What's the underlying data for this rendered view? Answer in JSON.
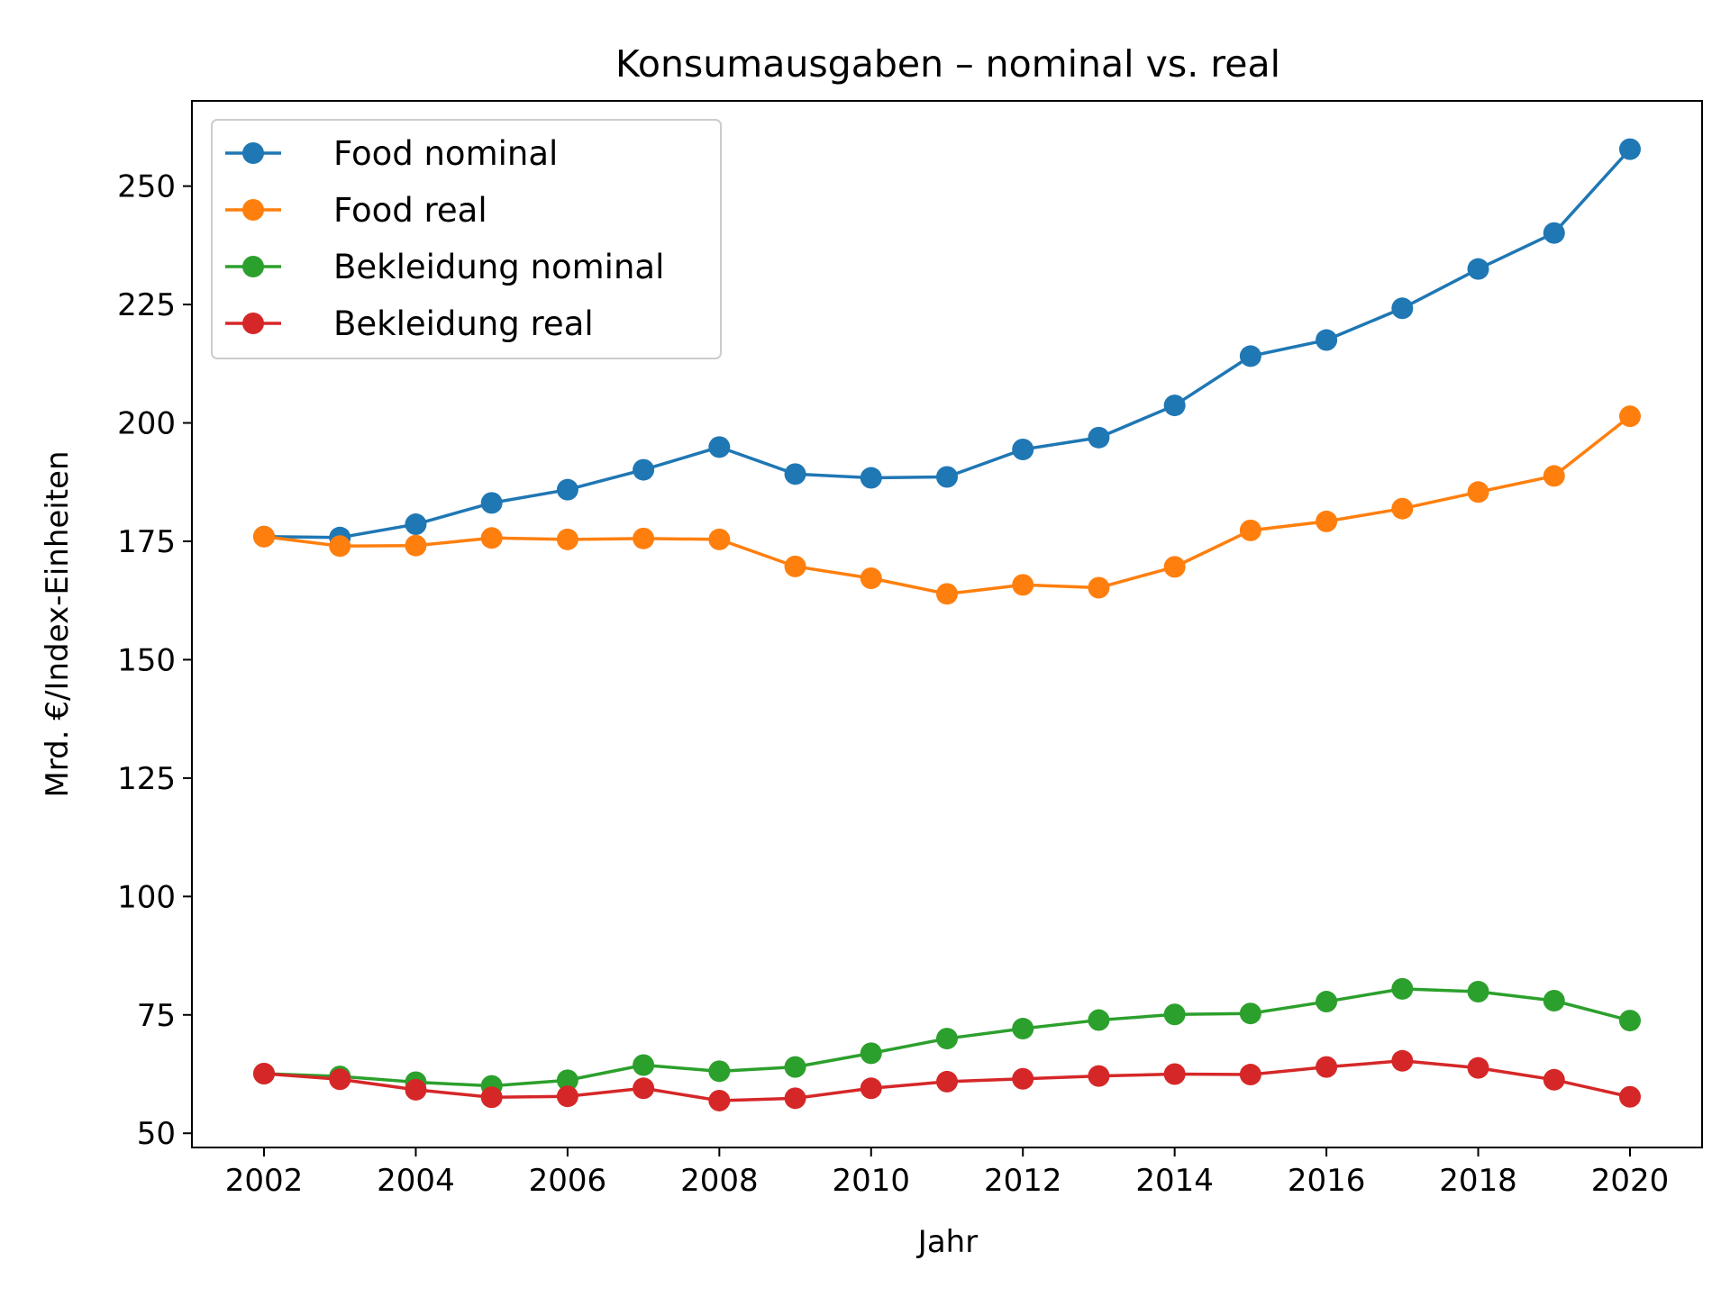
{
  "chart_data": {
    "type": "line",
    "title": "Konsumausgaben – nominal vs. real",
    "xlabel": "Jahr",
    "ylabel": "Mrd. €/Index-Einheiten",
    "x": [
      2002,
      2003,
      2004,
      2005,
      2006,
      2007,
      2008,
      2009,
      2010,
      2011,
      2012,
      2013,
      2014,
      2015,
      2016,
      2017,
      2018,
      2019,
      2020
    ],
    "xlim": [
      2001.05,
      2020.95
    ],
    "ylim": [
      47,
      268
    ],
    "xticks": [
      "2002",
      "2004",
      "2006",
      "2008",
      "2010",
      "2012",
      "2014",
      "2016",
      "2018",
      "2020"
    ],
    "yticks": [
      "50",
      "75",
      "100",
      "125",
      "150",
      "175",
      "200",
      "225",
      "250"
    ],
    "grid": false,
    "legend_position": "top-left",
    "series": [
      {
        "name": "Food nominal",
        "color": "#1f77b4",
        "values": [
          176.0,
          175.8,
          178.6,
          183.1,
          185.9,
          190.1,
          194.9,
          189.2,
          188.4,
          188.6,
          194.4,
          196.9,
          203.7,
          214.1,
          217.5,
          224.2,
          232.5,
          240.1,
          257.8
        ]
      },
      {
        "name": "Food real",
        "color": "#ff7f0e",
        "values": [
          176.0,
          174.0,
          174.1,
          175.7,
          175.4,
          175.6,
          175.4,
          169.7,
          167.2,
          163.9,
          165.8,
          165.2,
          169.6,
          177.3,
          179.2,
          181.9,
          185.4,
          188.8,
          201.4
        ]
      },
      {
        "name": "Bekleidung nominal",
        "color": "#2ca02c",
        "values": [
          62.6,
          62.0,
          60.8,
          60.0,
          61.2,
          64.4,
          63.1,
          64.0,
          66.9,
          70.0,
          72.1,
          73.9,
          75.1,
          75.3,
          77.8,
          80.5,
          79.9,
          78.0,
          73.8
        ]
      },
      {
        "name": "Bekleidung real",
        "color": "#d62728",
        "values": [
          62.6,
          61.4,
          59.2,
          57.6,
          57.8,
          59.5,
          56.9,
          57.4,
          59.5,
          60.9,
          61.5,
          62.1,
          62.5,
          62.4,
          64.0,
          65.3,
          63.8,
          61.3,
          57.7
        ]
      }
    ]
  }
}
